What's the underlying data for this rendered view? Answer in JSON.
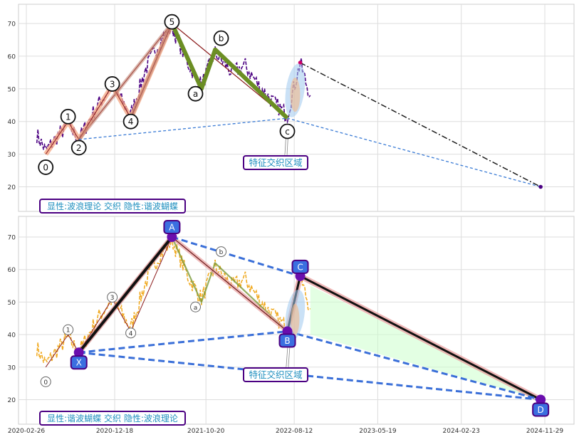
{
  "chart_data": [
    {
      "type": "line",
      "panel": "top",
      "ylim": [
        13,
        76
      ],
      "yticks": [
        20,
        30,
        40,
        50,
        60,
        70
      ],
      "grid": true,
      "wave_points": [
        {
          "label": "0",
          "x": "2020-05-01",
          "y": 30,
          "lx": "2020-05-01",
          "ly": 26
        },
        {
          "label": "1",
          "x": "2020-07-15",
          "y": 40,
          "lx": "2020-07-15",
          "ly": 41.5
        },
        {
          "label": "2",
          "x": "2020-08-20",
          "y": 34.5,
          "lx": "2020-08-20",
          "ly": 32
        },
        {
          "label": "3",
          "x": "2020-12-10",
          "y": 51,
          "lx": "2020-12-10",
          "ly": 51.5
        },
        {
          "label": "4",
          "x": "2021-02-10",
          "y": 41,
          "lx": "2021-02-10",
          "ly": 40
        },
        {
          "label": "5",
          "x": "2021-06-28",
          "y": 70,
          "lx": "2021-06-28",
          "ly": 70.5
        },
        {
          "label": "a",
          "x": "2021-10-05",
          "y": 50,
          "lx": "2021-09-15",
          "ly": 48.5
        },
        {
          "label": "b",
          "x": "2021-11-20",
          "y": 62,
          "lx": "2021-12-10",
          "ly": 65.5
        },
        {
          "label": "c",
          "x": "2022-07-20",
          "y": 41,
          "lx": "2022-07-20",
          "ly": 37
        }
      ],
      "projection_end": {
        "x": "2024-11-15",
        "y": 20
      },
      "annotation": "特征交织区域",
      "corner_label": "显性:波浪理论 交织 隐性:谐波蝴蝶"
    },
    {
      "type": "line",
      "panel": "bottom",
      "ylim": [
        13,
        76
      ],
      "yticks": [
        20,
        30,
        40,
        50,
        60,
        70
      ],
      "grid": true,
      "xticks": [
        "2020-02-26",
        "2020-12-18",
        "2021-10-20",
        "2022-08-12",
        "2023-05-19",
        "2024-02-23",
        "2024-11-29"
      ],
      "harmonic_points": [
        {
          "label": "X",
          "x": "2020-08-20",
          "y": 34.5
        },
        {
          "label": "A",
          "x": "2021-06-28",
          "y": 70
        },
        {
          "label": "B",
          "x": "2022-07-20",
          "y": 41
        },
        {
          "label": "C",
          "x": "2022-09-01",
          "y": 58
        },
        {
          "label": "D",
          "x": "2024-11-15",
          "y": 20
        }
      ],
      "wave_labels": [
        "0",
        "1",
        "3",
        "4",
        "a",
        "b"
      ],
      "annotation": "特征交织区域",
      "corner_label": "显性:谐波蝴蝶 交织 隐性:波浪理论"
    }
  ]
}
